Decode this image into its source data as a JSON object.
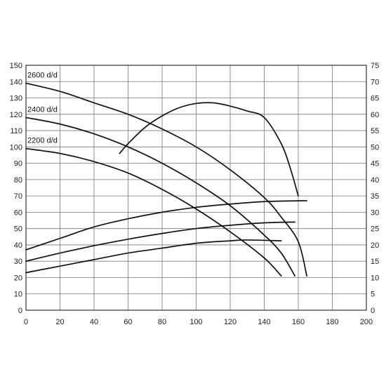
{
  "chart_data": {
    "type": "line",
    "title": "",
    "xlabel": "",
    "ylabel": "",
    "y2label": "",
    "xlim": [
      0,
      200
    ],
    "ylim": [
      0,
      150
    ],
    "y2lim": [
      0,
      75
    ],
    "grid": true,
    "x_ticks": [
      "0",
      "20",
      "40",
      "60",
      "80",
      "100",
      "120",
      "140",
      "160",
      "180",
      "200"
    ],
    "y_ticks": [
      "0",
      "10",
      "20",
      "30",
      "40",
      "50",
      "60",
      "70",
      "80",
      "90",
      "100",
      "110",
      "120",
      "130",
      "140",
      "150"
    ],
    "y2_ticks": [
      "0",
      "5",
      "10",
      "15",
      "20",
      "25",
      "30",
      "35",
      "40",
      "45",
      "50",
      "55",
      "60",
      "65",
      "70",
      "75"
    ],
    "series": [
      {
        "name": "2600 d/d",
        "axis": "left",
        "x": [
          0,
          20,
          40,
          60,
          80,
          100,
          120,
          140,
          150,
          160,
          165
        ],
        "y": [
          139,
          134,
          127,
          120,
          111,
          100,
          86,
          69,
          57,
          42,
          21
        ]
      },
      {
        "name": "2400 d/d",
        "axis": "left",
        "x": [
          0,
          20,
          40,
          60,
          80,
          100,
          120,
          140,
          150,
          158
        ],
        "y": [
          118,
          114,
          108,
          100,
          90,
          78,
          64,
          46,
          35,
          21
        ]
      },
      {
        "name": "2200 d/d",
        "axis": "left",
        "x": [
          0,
          20,
          40,
          60,
          80,
          100,
          120,
          140,
          150
        ],
        "y": [
          99,
          96,
          91,
          84,
          74,
          62,
          48,
          32,
          21
        ]
      },
      {
        "name": "",
        "axis": "left",
        "x": [
          0,
          20,
          40,
          60,
          80,
          100,
          120,
          140,
          160,
          165
        ],
        "y": [
          37,
          44,
          51,
          56,
          60,
          63,
          65,
          66.5,
          67,
          67
        ]
      },
      {
        "name": "",
        "axis": "left",
        "x": [
          0,
          20,
          40,
          60,
          80,
          100,
          120,
          140,
          158
        ],
        "y": [
          30,
          35,
          39.5,
          43.5,
          47,
          50,
          52,
          53.5,
          54
        ]
      },
      {
        "name": "",
        "axis": "left",
        "x": [
          0,
          20,
          40,
          60,
          80,
          100,
          120,
          130,
          150
        ],
        "y": [
          23,
          27,
          31,
          35,
          38,
          41,
          42.5,
          43,
          42.5
        ]
      },
      {
        "name": "",
        "axis": "right",
        "x": [
          55,
          60,
          70,
          80,
          90,
          100,
          110,
          120,
          130,
          140,
          150,
          155,
          160
        ],
        "y": [
          48,
          51,
          56,
          59.5,
          62,
          63.3,
          63.5,
          62.5,
          61,
          59,
          51,
          44,
          35
        ]
      }
    ],
    "annotations": [
      "2600 d/d",
      "2400 d/d",
      "2200 d/d"
    ]
  }
}
